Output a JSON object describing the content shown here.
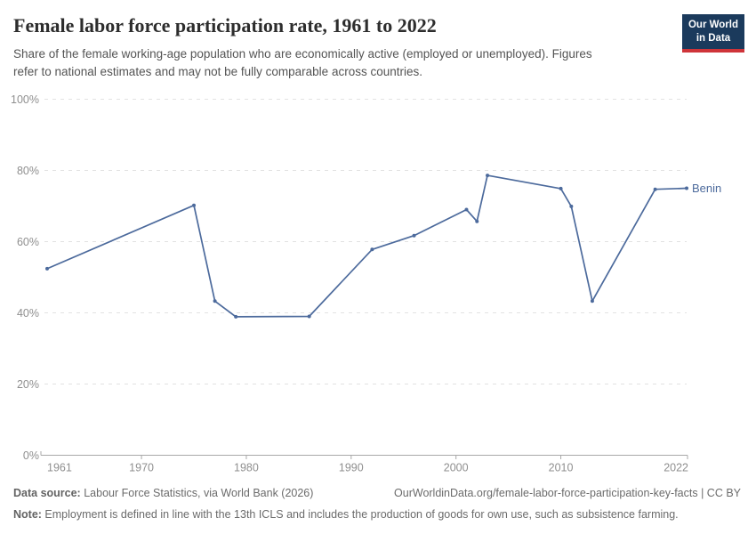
{
  "header": {
    "title": "Female labor force participation rate, 1961 to 2022",
    "subtitle_lines": [
      "Share of the female working-age population who are economically active (employed or unemployed). Figures",
      "refer to national estimates and may not be fully comparable across countries."
    ],
    "logo": {
      "line1": "Our World",
      "line2": "in Data"
    }
  },
  "chart_data": {
    "type": "line",
    "title": "Female labor force participation rate, 1961 to 2022",
    "xlabel": "",
    "ylabel": "",
    "xlim": [
      1961,
      2022
    ],
    "ylim": [
      0,
      100
    ],
    "x_ticks": [
      1961,
      1970,
      1980,
      1990,
      2000,
      2010,
      2022
    ],
    "y_ticks": [
      0,
      20,
      40,
      60,
      80,
      100
    ],
    "y_tick_suffix": "%",
    "grid": "horizontal-dashed",
    "legend_position": "end-of-line",
    "series": [
      {
        "name": "Benin",
        "color": "#4c6a9c",
        "points": [
          {
            "year": 1961,
            "value": 52.4
          },
          {
            "year": 1975,
            "value": 70.2
          },
          {
            "year": 1977,
            "value": 43.3
          },
          {
            "year": 1979,
            "value": 38.9
          },
          {
            "year": 1986,
            "value": 39.0
          },
          {
            "year": 1992,
            "value": 57.8
          },
          {
            "year": 1996,
            "value": 61.7
          },
          {
            "year": 2001,
            "value": 69.0
          },
          {
            "year": 2002,
            "value": 65.7
          },
          {
            "year": 2003,
            "value": 78.6
          },
          {
            "year": 2010,
            "value": 74.9
          },
          {
            "year": 2011,
            "value": 69.9
          },
          {
            "year": 2013,
            "value": 43.3
          },
          {
            "year": 2019,
            "value": 74.7
          },
          {
            "year": 2022,
            "value": 75.0
          }
        ]
      }
    ]
  },
  "footer": {
    "datasource_label": "Data source:",
    "datasource_text": " Labour Force Statistics, via World Bank (2026)",
    "link_text": "OurWorldinData.org/female-labor-force-participation-key-facts | CC BY",
    "note_label": "Note:",
    "note_text": " Employment is defined in line with the 13th ICLS and includes the production of goods for own use, such as subsistence farming."
  },
  "colors": {
    "series_line": "#4c6a9c",
    "grid_line": "#e2e2e2",
    "axis_line": "#a8a8a8",
    "tick_label": "#8f8f8f",
    "logo_bg": "#1b3a5c",
    "logo_stripe": "#cf3439"
  }
}
